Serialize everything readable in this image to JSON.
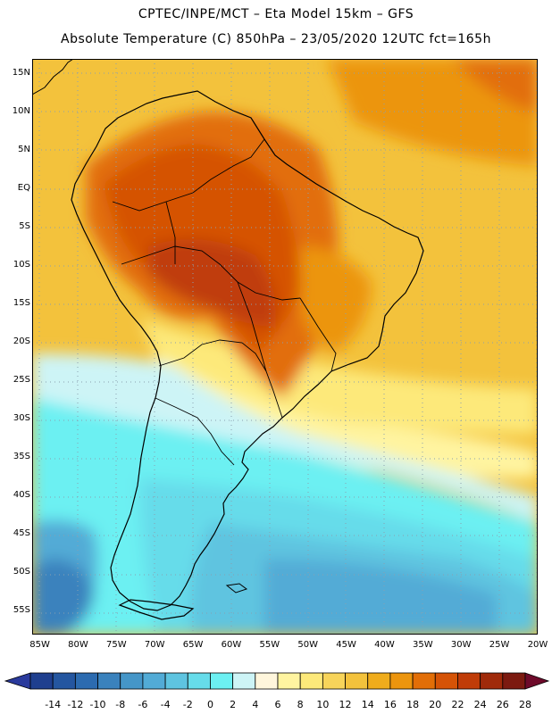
{
  "header": {
    "line1": "CPTEC/INPE/MCT –  Eta Model 15km – GFS",
    "line2": "Absolute Temperature (C) 850hPa – 23/05/2020 12UTC fct=165h"
  },
  "map": {
    "variable": "Absolute Temperature",
    "unit": "C",
    "level": "850hPa",
    "lat_range": [
      -58,
      17
    ],
    "lon_range": [
      -86,
      -20
    ],
    "lat_labels": [
      "15N",
      "10N",
      "5N",
      "EQ",
      "5S",
      "10S",
      "15S",
      "20S",
      "25S",
      "30S",
      "35S",
      "40S",
      "45S",
      "50S",
      "55S"
    ],
    "lat_values": [
      15,
      10,
      5,
      0,
      -5,
      -10,
      -15,
      -20,
      -25,
      -30,
      -35,
      -40,
      -45,
      -50,
      -55
    ],
    "lon_labels": [
      "85W",
      "80W",
      "75W",
      "70W",
      "65W",
      "60W",
      "55W",
      "50W",
      "45W",
      "40W",
      "35W",
      "30W",
      "25W",
      "20W"
    ],
    "lon_values": [
      -85,
      -80,
      -75,
      -70,
      -65,
      -60,
      -55,
      -50,
      -45,
      -40,
      -35,
      -30,
      -25,
      -20
    ]
  },
  "colorbar": {
    "labels": [
      "-14",
      "-12",
      "-10",
      "-8",
      "-6",
      "-4",
      "-2",
      "0",
      "2",
      "4",
      "6",
      "8",
      "10",
      "12",
      "14",
      "16",
      "18",
      "20",
      "22",
      "24",
      "26",
      "28"
    ],
    "colors": [
      "#1f3f8f",
      "#2456a0",
      "#2c6bb0",
      "#3a82bd",
      "#4596c8",
      "#52abd6",
      "#5ec4e0",
      "#66dcea",
      "#6cf0f2",
      "#cdf4f6",
      "#fff6dc",
      "#fff4a0",
      "#fde97a",
      "#f7d45a",
      "#f3c23c",
      "#efac1c",
      "#ec950e",
      "#e26e07",
      "#d55306",
      "#c03c08",
      "#a02a0a",
      "#7c1a10"
    ],
    "under_color": "#2a3a9c",
    "over_color": "#6e0a2a"
  }
}
